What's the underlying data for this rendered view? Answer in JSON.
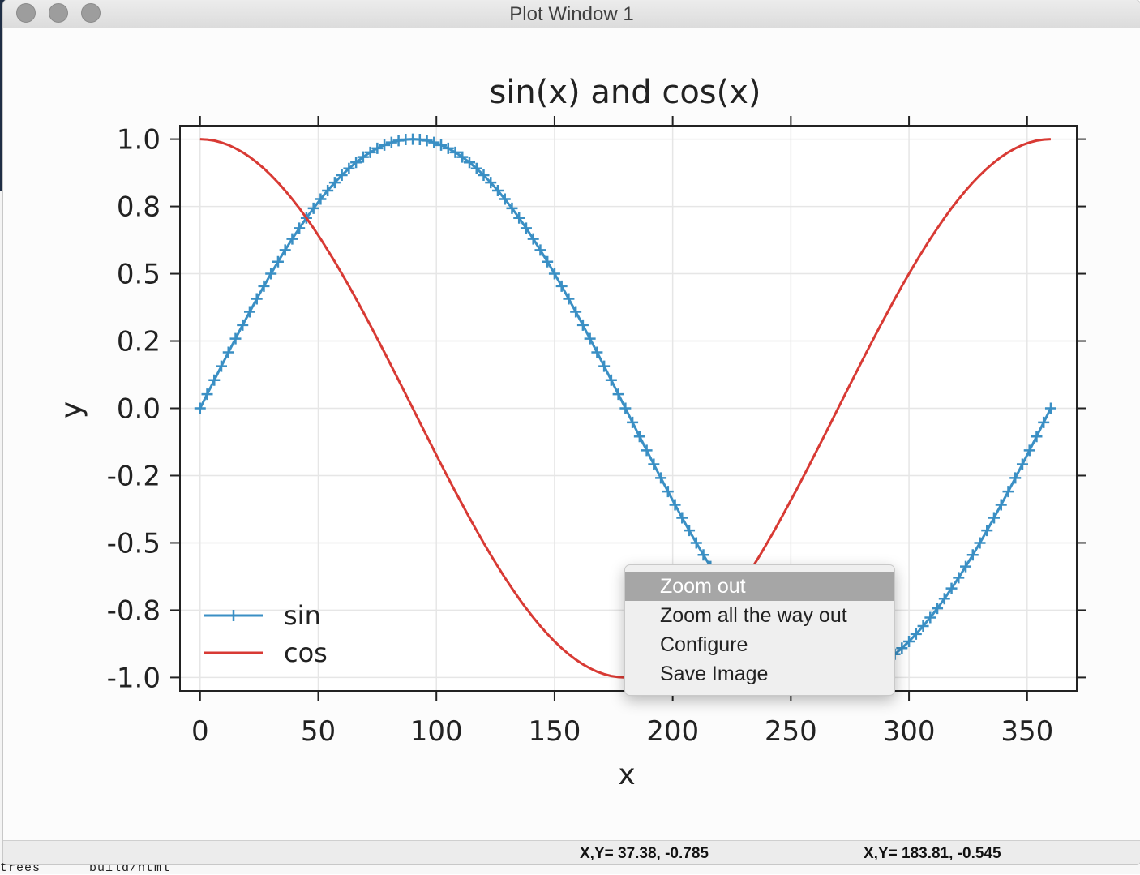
{
  "window": {
    "title": "Plot Window 1"
  },
  "background": {
    "terminal_text": "trees      build/html"
  },
  "chart_data": {
    "type": "line",
    "title": "sin(x) and cos(x)",
    "xlabel": "x",
    "ylabel": "y",
    "xlim": [
      -8.5,
      371
    ],
    "ylim": [
      -1.05,
      1.05
    ],
    "x_ticks": [
      0,
      50,
      100,
      150,
      200,
      250,
      300,
      350
    ],
    "x_tick_labels": [
      "0",
      "50",
      "100",
      "150",
      "200",
      "250",
      "300",
      "350"
    ],
    "y_ticks": [
      1.0,
      0.75,
      0.5,
      0.25,
      0.0,
      -0.25,
      -0.5,
      -0.75,
      -1.0
    ],
    "y_tick_labels": [
      "1.0",
      "0.8",
      "0.5",
      "0.2",
      "0.0",
      "-0.2",
      "-0.5",
      "-0.8",
      "-1.0"
    ],
    "grid": true,
    "legend_position": "lower-left",
    "series": [
      {
        "name": "sin",
        "function": "sin",
        "x_range": [
          0,
          360
        ],
        "x_step": 3,
        "marker": "+",
        "color": "#3a8fc4"
      },
      {
        "name": "cos",
        "function": "cos",
        "x_range": [
          0,
          360
        ],
        "x_step": 3,
        "marker": "none",
        "color": "#d83a34"
      }
    ]
  },
  "context_menu": {
    "items": [
      {
        "label": "Zoom out",
        "highlighted": true
      },
      {
        "label": "Zoom all the way out",
        "highlighted": false
      },
      {
        "label": "Configure",
        "highlighted": false
      },
      {
        "label": "Save Image",
        "highlighted": false
      }
    ]
  },
  "status_bar": {
    "coord_left": "X,Y= 37.38, -0.785",
    "coord_right": "X,Y= 183.81, -0.545"
  }
}
